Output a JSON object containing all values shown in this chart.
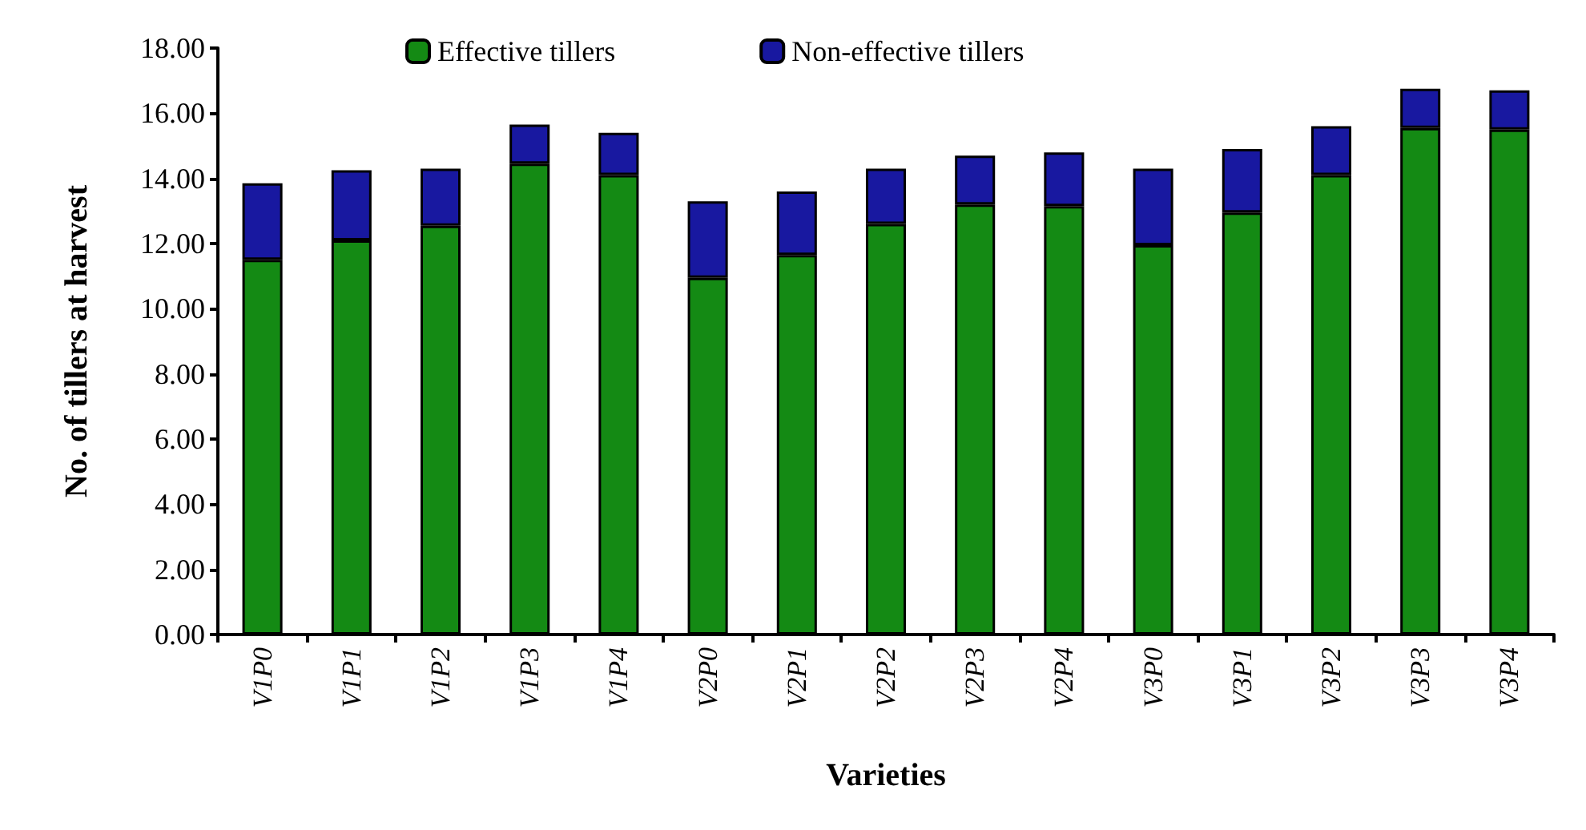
{
  "chart_data": {
    "type": "bar",
    "stacked": true,
    "xlabel": "Varieties",
    "ylabel": "No. of tillers at harvest",
    "categories": [
      "V1P0",
      "V1P1",
      "V1P2",
      "V1P3",
      "V1P4",
      "V2P0",
      "V2P1",
      "V2P2",
      "V2P3",
      "V2P4",
      "V3P0",
      "V3P1",
      "V3P2",
      "V3P3",
      "V3P4"
    ],
    "series": [
      {
        "name": "Effective tillers",
        "color": "#148a14",
        "values": [
          11.5,
          12.1,
          12.55,
          14.45,
          14.1,
          10.95,
          11.65,
          12.6,
          13.2,
          13.15,
          11.95,
          12.95,
          14.1,
          15.55,
          15.5
        ]
      },
      {
        "name": "Non-effective tillers",
        "color": "#1818a0",
        "values": [
          2.35,
          2.15,
          1.75,
          1.2,
          1.3,
          2.35,
          1.95,
          1.7,
          1.5,
          1.65,
          2.35,
          1.95,
          1.5,
          1.2,
          1.2
        ]
      }
    ],
    "ylim": [
      0,
      18
    ],
    "yticks": [
      {
        "value": 0,
        "label": "0.00"
      },
      {
        "value": 2,
        "label": "2.00"
      },
      {
        "value": 4,
        "label": "4.00"
      },
      {
        "value": 6,
        "label": "6.00"
      },
      {
        "value": 8,
        "label": "8.00"
      },
      {
        "value": 10,
        "label": "10.00"
      },
      {
        "value": 12,
        "label": "12.00"
      },
      {
        "value": 14,
        "label": "14.00"
      },
      {
        "value": 16,
        "label": "16.00"
      },
      {
        "value": 18,
        "label": "18.00"
      }
    ],
    "grid": false,
    "legend": "top"
  }
}
